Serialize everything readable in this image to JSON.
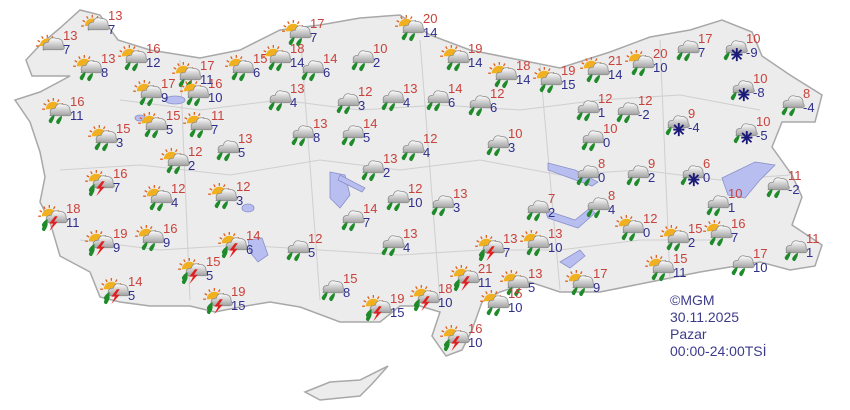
{
  "title": "",
  "colors": {
    "land": "#ececec",
    "border": "#a8a8a8",
    "water": "#b8bff0",
    "max_temp": "#c8423c",
    "min_temp": "#2e2e8c",
    "rain": "#1f8a2a",
    "thunder": "#e02020",
    "snow": "#1a1a7a"
  },
  "legend_icons": {
    "ps": "partly-cloudy-icon",
    "pr": "partly-cloudy-rain-icon",
    "r": "rain-icon",
    "t": "thunderstorm-icon",
    "s": "rain-snow-icon"
  },
  "info": {
    "copyright": "©MGM",
    "date": "30.11.2025",
    "day": "Pazar",
    "period": "00:00-24:00TSİ"
  },
  "stations": [
    {
      "max": "13",
      "min": "7",
      "icon": "ps"
    },
    {
      "max": "13",
      "min": "7",
      "icon": "ps"
    },
    {
      "max": "13",
      "min": "8",
      "icon": "pr"
    },
    {
      "max": "16",
      "min": "12",
      "icon": "pr"
    },
    {
      "max": "17",
      "min": "11",
      "icon": "pr"
    },
    {
      "max": "17",
      "min": "9",
      "icon": "pr"
    },
    {
      "max": "16",
      "min": "10",
      "icon": "pr"
    },
    {
      "max": "15",
      "min": "6",
      "icon": "pr"
    },
    {
      "max": "18",
      "min": "14",
      "icon": "pr"
    },
    {
      "max": "17",
      "min": "7",
      "icon": "pr"
    },
    {
      "max": "16",
      "min": "11",
      "icon": "pr"
    },
    {
      "max": "15",
      "min": "5",
      "icon": "pr"
    },
    {
      "max": "11",
      "min": "7",
      "icon": "pr"
    },
    {
      "max": "15",
      "min": "3",
      "icon": "pr"
    },
    {
      "max": "14",
      "min": "6",
      "icon": "r"
    },
    {
      "max": "10",
      "min": "2",
      "icon": "r"
    },
    {
      "max": "20",
      "min": "14",
      "icon": "pr"
    },
    {
      "max": "19",
      "min": "14",
      "icon": "pr"
    },
    {
      "max": "18",
      "min": "14",
      "icon": "pr"
    },
    {
      "max": "19",
      "min": "15",
      "icon": "pr"
    },
    {
      "max": "21",
      "min": "14",
      "icon": "pr"
    },
    {
      "max": "20",
      "min": "10",
      "icon": "pr"
    },
    {
      "max": "17",
      "min": "7",
      "icon": "r"
    },
    {
      "max": "10",
      "min": "-9",
      "icon": "s"
    },
    {
      "max": "10",
      "min": "-8",
      "icon": "s"
    },
    {
      "max": "8",
      "min": "-4",
      "icon": "r"
    },
    {
      "max": "10",
      "min": "-5",
      "icon": "s"
    },
    {
      "max": "9",
      "min": "-4",
      "icon": "s"
    },
    {
      "max": "12",
      "min": "-2",
      "icon": "r"
    },
    {
      "max": "12",
      "min": "1",
      "icon": "r"
    },
    {
      "max": "10",
      "min": "0",
      "icon": "r"
    },
    {
      "max": "8",
      "min": "0",
      "icon": "r"
    },
    {
      "max": "8",
      "min": "4",
      "icon": "r"
    },
    {
      "max": "7",
      "min": "2",
      "icon": "r"
    },
    {
      "max": "9",
      "min": "2",
      "icon": "r"
    },
    {
      "max": "6",
      "min": "0",
      "icon": "s"
    },
    {
      "max": "10",
      "min": "1",
      "icon": "r"
    },
    {
      "max": "11",
      "min": "-2",
      "icon": "r"
    },
    {
      "max": "12",
      "min": "0",
      "icon": "pr"
    },
    {
      "max": "15",
      "min": "2",
      "icon": "pr"
    },
    {
      "max": "16",
      "min": "7",
      "icon": "pr"
    },
    {
      "max": "11",
      "min": "1",
      "icon": "r"
    },
    {
      "max": "17",
      "min": "10",
      "icon": "r"
    },
    {
      "max": "15",
      "min": "11",
      "icon": "pr"
    },
    {
      "max": "17",
      "min": "9",
      "icon": "pr"
    },
    {
      "max": "13",
      "min": "5",
      "icon": "pr"
    },
    {
      "max": "13",
      "min": "10",
      "icon": "pr"
    },
    {
      "max": "13",
      "min": "7",
      "icon": "t"
    },
    {
      "max": "21",
      "min": "11",
      "icon": "t"
    },
    {
      "max": "15",
      "min": "10",
      "icon": "pr"
    },
    {
      "max": "16",
      "min": "10",
      "icon": "t"
    },
    {
      "max": "18",
      "min": "10",
      "icon": "t"
    },
    {
      "max": "19",
      "min": "15",
      "icon": "t"
    },
    {
      "max": "15",
      "min": "8",
      "icon": "r"
    },
    {
      "max": "12",
      "min": "5",
      "icon": "r"
    },
    {
      "max": "13",
      "min": "4",
      "icon": "r"
    },
    {
      "max": "14",
      "min": "7",
      "icon": "r"
    },
    {
      "max": "12",
      "min": "10",
      "icon": "r"
    },
    {
      "max": "13",
      "min": "2",
      "icon": "r"
    },
    {
      "max": "13",
      "min": "3",
      "icon": "r"
    },
    {
      "max": "12",
      "min": "4",
      "icon": "r"
    },
    {
      "max": "10",
      "min": "3",
      "icon": "r"
    },
    {
      "max": "13",
      "min": "8",
      "icon": "r"
    },
    {
      "max": "14",
      "min": "5",
      "icon": "r"
    },
    {
      "max": "13",
      "min": "4",
      "icon": "r"
    },
    {
      "max": "14",
      "min": "6",
      "icon": "r"
    },
    {
      "max": "12",
      "min": "6",
      "icon": "r"
    },
    {
      "max": "12",
      "min": "3",
      "icon": "r"
    },
    {
      "max": "13",
      "min": "4",
      "icon": "r"
    },
    {
      "max": "13",
      "min": "5",
      "icon": "r"
    },
    {
      "max": "12",
      "min": "2",
      "icon": "pr"
    },
    {
      "max": "16",
      "min": "7",
      "icon": "t"
    },
    {
      "max": "12",
      "min": "4",
      "icon": "pr"
    },
    {
      "max": "12",
      "min": "3",
      "icon": "pr"
    },
    {
      "max": "18",
      "min": "11",
      "icon": "t"
    },
    {
      "max": "19",
      "min": "9",
      "icon": "t"
    },
    {
      "max": "16",
      "min": "9",
      "icon": "pr"
    },
    {
      "max": "14",
      "min": "6",
      "icon": "t"
    },
    {
      "max": "15",
      "min": "5",
      "icon": "t"
    },
    {
      "max": "14",
      "min": "5",
      "icon": "t"
    },
    {
      "max": "19",
      "min": "15",
      "icon": "t"
    }
  ]
}
